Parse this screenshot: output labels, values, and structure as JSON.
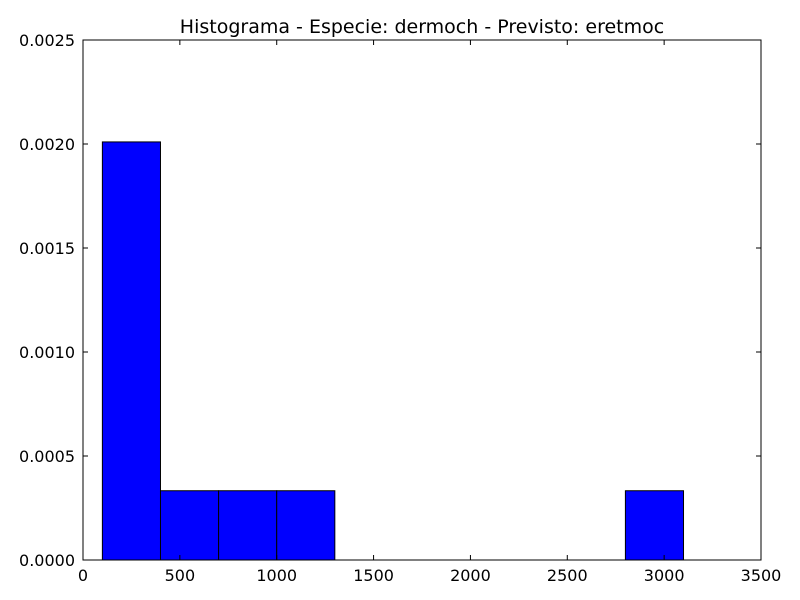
{
  "chart_data": {
    "type": "bar",
    "title": "Histograma - Especie: dermoch - Previsto: eretmoc",
    "xlabel": "",
    "ylabel": "",
    "xlim": [
      0,
      3500
    ],
    "ylim": [
      0,
      0.0025
    ],
    "x_ticks": [
      0,
      500,
      1000,
      1500,
      2000,
      2500,
      3000,
      3500
    ],
    "x_tick_labels": [
      "0",
      "500",
      "1000",
      "1500",
      "2000",
      "2500",
      "3000",
      "3500"
    ],
    "y_ticks": [
      0,
      0.0005,
      0.001,
      0.0015,
      0.002,
      0.0025
    ],
    "y_tick_labels": [
      "0.0000",
      "0.0005",
      "0.0010",
      "0.0015",
      "0.0020",
      "0.0025"
    ],
    "bins": [
      {
        "start": 100,
        "end": 400,
        "value": 0.00201
      },
      {
        "start": 400,
        "end": 700,
        "value": 0.000333
      },
      {
        "start": 700,
        "end": 1000,
        "value": 0.000333
      },
      {
        "start": 1000,
        "end": 1300,
        "value": 0.000333
      },
      {
        "start": 1300,
        "end": 1600,
        "value": 0
      },
      {
        "start": 1600,
        "end": 1900,
        "value": 0
      },
      {
        "start": 1900,
        "end": 2200,
        "value": 0
      },
      {
        "start": 2200,
        "end": 2500,
        "value": 0
      },
      {
        "start": 2500,
        "end": 2800,
        "value": 0
      },
      {
        "start": 2800,
        "end": 3100,
        "value": 0.000333
      }
    ],
    "bar_color": "#0000ff",
    "edge_color": "#000000",
    "grid": false,
    "legend": "none"
  }
}
